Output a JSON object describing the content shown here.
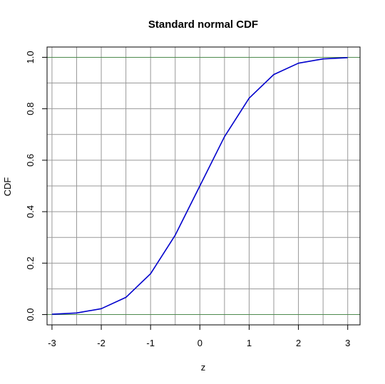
{
  "chart_data": {
    "type": "line",
    "title": "Standard normal CDF",
    "xlabel": "z",
    "ylabel": "CDF",
    "xlim": [
      -3.1,
      3.25
    ],
    "ylim": [
      -0.04,
      1.04
    ],
    "x_ticks": [
      -3,
      -2,
      -1,
      0,
      1,
      2,
      3
    ],
    "x_tick_labels": [
      "-3",
      "-2",
      "-1",
      "0",
      "1",
      "2",
      "3"
    ],
    "y_ticks": [
      0.0,
      0.2,
      0.4,
      0.6,
      0.8,
      1.0
    ],
    "y_tick_labels": [
      "0.0",
      "0.2",
      "0.4",
      "0.6",
      "0.8",
      "1.0"
    ],
    "grid": true,
    "grid_color": "#999999",
    "reference_lines": [
      {
        "y": 0.0,
        "color": "#4d8a4d"
      },
      {
        "y": 1.0,
        "color": "#4d8a4d"
      }
    ],
    "series": [
      {
        "color": "#0000cc",
        "x": [
          -3.0,
          -2.5,
          -2.0,
          -1.5,
          -1.0,
          -0.5,
          0.0,
          0.5,
          1.0,
          1.5,
          2.0,
          2.5,
          3.0
        ],
        "y": [
          0.0013,
          0.0062,
          0.0228,
          0.0668,
          0.1587,
          0.3085,
          0.5,
          0.6915,
          0.8413,
          0.9332,
          0.9772,
          0.9938,
          0.9987
        ]
      }
    ]
  }
}
